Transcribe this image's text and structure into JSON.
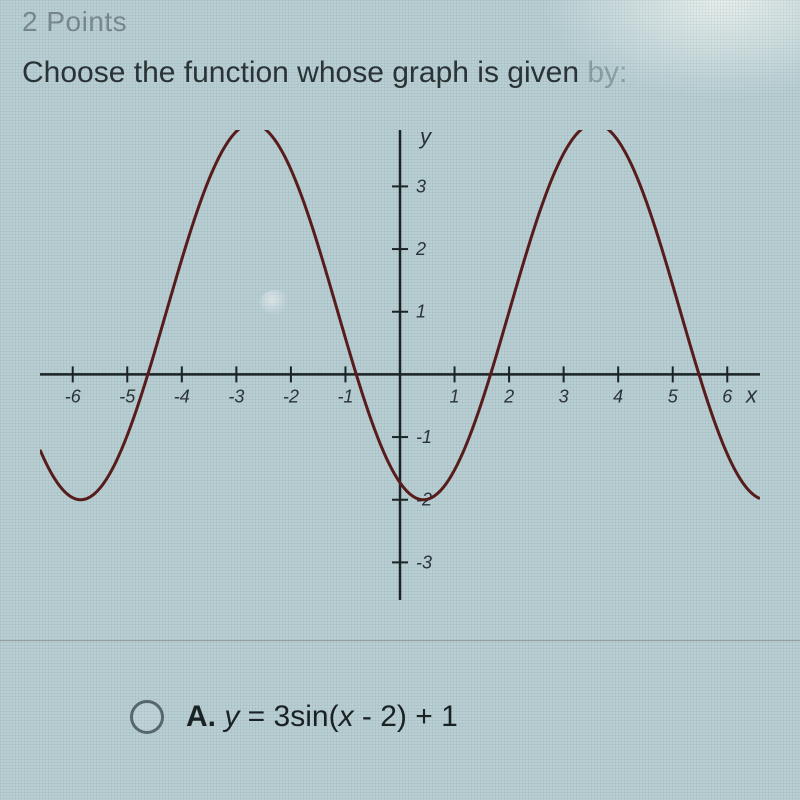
{
  "header": {
    "points_label": "2 Points",
    "question_main": "Choose the function whose graph is given ",
    "question_trail": "by:"
  },
  "chart": {
    "type": "line",
    "xlim": [
      -6.6,
      6.6
    ],
    "ylim": [
      -3.6,
      3.9
    ],
    "xtick_step": 1,
    "ytick_step": 1,
    "xticks": [
      -6,
      -5,
      -4,
      -3,
      -2,
      -1,
      1,
      2,
      3,
      4,
      5,
      6
    ],
    "yticks": [
      -3,
      -2,
      -1,
      1,
      2,
      3
    ],
    "x_axis_label": "x",
    "y_axis_label": "y",
    "axis_color": "#1c2426",
    "curve_color": "#5a1c1c",
    "background_color": "#b8cfd4",
    "curve": {
      "amplitude": 3,
      "vertical_shift": 1,
      "period": 6.2832,
      "phase_shift": 2,
      "formula_desc": "y = 3*sin(x - 2) + 1"
    },
    "label_fontsize": 18,
    "axis_label_fontsize": 22,
    "line_width": 3
  },
  "option_a": {
    "letter": "A.",
    "prefix": "y",
    "eq": " = 3sin(",
    "var": "x",
    "tail": " - 2) + 1"
  }
}
